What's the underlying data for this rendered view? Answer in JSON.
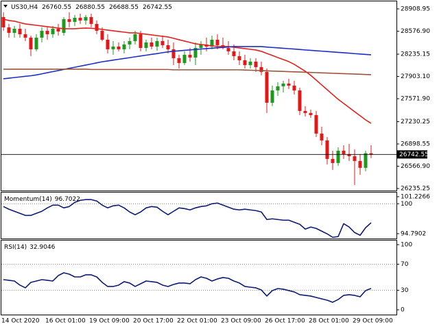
{
  "chart_data": {
    "type": "candlestick",
    "title": "US30,H4",
    "up_color": "#1c9a1c",
    "down_color": "#e01818",
    "categories": [
      "14 Oct 2020",
      null,
      null,
      null,
      null,
      null,
      null,
      null,
      "16 Oct 01:00",
      null,
      null,
      null,
      null,
      null,
      null,
      null,
      "19 Oct 09:00",
      null,
      null,
      null,
      null,
      null,
      null,
      null,
      "20 Oct 17:00",
      null,
      null,
      null,
      null,
      null,
      null,
      null,
      "22 Oct 01:00",
      null,
      null,
      null,
      null,
      null,
      null,
      null,
      "23 Oct 09:00",
      null,
      null,
      null,
      null,
      null,
      null,
      null,
      "26 Oct 17:00",
      null,
      null,
      null,
      null,
      null,
      null,
      null,
      "28 Oct 01:00",
      null,
      null,
      null,
      null,
      null,
      null,
      null,
      "29 Oct 09:00",
      null,
      null,
      null
    ],
    "open": [
      28787,
      28634,
      28552.4,
      28613.6,
      28532,
      28481,
      28307.6,
      28481,
      28583,
      28532,
      28613.6,
      28552.4,
      28756.4,
      28715.6,
      28776.8,
      28736,
      28787,
      28685,
      28583,
      28450.4,
      28307.6,
      28348.4,
      28307.6,
      28379,
      28430,
      28532,
      28328,
      28409.6,
      28348.4,
      28430,
      28368.8,
      28307.6,
      28175,
      28103.6,
      28226,
      28185.2,
      28328,
      28379,
      28348.4,
      28450.4,
      28368.8,
      28328,
      28277,
      28205.6,
      28144.4,
      28073,
      28124,
      28042.4,
      27971,
      27512,
      27695.6,
      27756.8,
      27797.6,
      27767,
      27695.6,
      27389.6,
      27359,
      27328.4,
      27053,
      26951,
      26675.6,
      26614.4,
      26798,
      26747,
      26716.4,
      26645,
      26543,
      26760.55
    ],
    "high": [
      28858.4,
      28685,
      28654.4,
      28685,
      28613.6,
      28511.6,
      28532,
      28634,
      28634,
      28654.4,
      28685,
      28787,
      28858.4,
      28817.6,
      28838,
      28817.6,
      28838,
      28736,
      28634,
      28532,
      28430,
      28409.6,
      28430,
      28481,
      28583,
      28583,
      28450.4,
      28481,
      28481,
      28511.6,
      28450.4,
      28409.6,
      28226,
      28277,
      28328,
      28409.6,
      28430,
      28481,
      28511.6,
      28532,
      28481,
      28430,
      28379,
      28277,
      28226,
      28175,
      28175,
      28124,
      28022,
      27767,
      27818,
      27838.4,
      27869,
      27838.4,
      27736.4,
      27461,
      27410,
      27389.6,
      27155,
      27002,
      26798,
      26849,
      26879.6,
      26900,
      26818.4,
      26747,
      26798,
      26880.55
    ],
    "low": [
      28583,
      28481,
      28481,
      28481,
      28430,
      28205.6,
      28277,
      28409.6,
      28450.4,
      28481,
      28511.6,
      28511.6,
      28634,
      28654.4,
      28685,
      28674.8,
      28634,
      28532,
      28430,
      28246.4,
      28226,
      28277,
      28246.4,
      28307.6,
      28379,
      28277,
      28277,
      28307.6,
      28287.2,
      28328,
      28246.4,
      28073,
      28022,
      28073,
      28124,
      28073,
      28226,
      28277,
      28307.6,
      28307.6,
      28307.6,
      28226,
      28144.4,
      28073,
      28022,
      28022,
      27971,
      27920,
      27359,
      27461,
      27614,
      27665,
      27716,
      27634.4,
      27328.4,
      27308,
      27287.6,
      27002,
      26879.6,
      26594,
      26512.4,
      26573.6,
      26675.6,
      26645,
      26288,
      26441,
      26492,
      26688.55
    ],
    "close": [
      28634,
      28552.4,
      28613.6,
      28532,
      28481,
      28307.6,
      28481,
      28583,
      28532,
      28613.6,
      28572.8,
      28756.4,
      28715.6,
      28776.8,
      28736,
      28787,
      28685,
      28583,
      28450.4,
      28307.6,
      28348.4,
      28307.6,
      28379,
      28430,
      28532,
      28328,
      28409.6,
      28348.4,
      28430,
      28368.8,
      28307.6,
      28175,
      28103.6,
      28226,
      28185.2,
      28328,
      28379,
      28348.4,
      28450.4,
      28368.8,
      28328,
      28277,
      28205.6,
      28144.4,
      28073,
      28124,
      28042.4,
      27971,
      27512,
      27695.6,
      27756.8,
      27797.6,
      27767,
      27695.6,
      27389.6,
      27359,
      27328.4,
      27053,
      26951,
      26675.6,
      26614.4,
      26798,
      26747,
      26716.4,
      26645,
      26543,
      26760.55,
      26742.55
    ],
    "series": [
      {
        "color": "#e5201c",
        "values": [
          28756,
          28736,
          28726,
          28705,
          28685,
          28675,
          28665,
          28654,
          28644,
          28634,
          28624,
          28614,
          28614,
          28614,
          28620,
          28624,
          28620,
          28614,
          28604,
          28593,
          28583,
          28573,
          28563,
          28552,
          28552,
          28542,
          28532,
          28522,
          28511,
          28501,
          28491,
          28471,
          28450,
          28430,
          28410,
          28389,
          28379,
          28369,
          28359,
          28348,
          28348,
          28348,
          28338,
          28328,
          28318,
          28308,
          28297,
          28277,
          28246,
          28216,
          28185,
          28155,
          28124,
          28083,
          28032,
          27981,
          27920,
          27849,
          27777,
          27706,
          27634,
          27563,
          27502,
          27441,
          27379,
          27318,
          27257,
          27206
        ]
      },
      {
        "color": "#1c2fc4",
        "values": [
          27869,
          27878,
          27887,
          27896,
          27906,
          27914,
          27926,
          27942,
          27959,
          27975,
          27991,
          28008,
          28024,
          28040,
          28057,
          28073,
          28089,
          28106,
          28122,
          28134,
          28147,
          28159,
          28171,
          28183,
          28196,
          28208,
          28220,
          28232,
          28244,
          28257,
          28269,
          28279,
          28285,
          28292,
          28298,
          28305,
          28312,
          28318,
          28324,
          28330,
          28336,
          28343,
          28348,
          28348,
          28348,
          28348,
          28348,
          28348,
          28341,
          28335,
          28329,
          28323,
          28317,
          28311,
          28305,
          28298,
          28292,
          28286,
          28280,
          28274,
          28268,
          28262,
          28256,
          28250,
          28243,
          28237,
          28231,
          28226
        ]
      },
      {
        "color": "#9a5636",
        "values": [
          28012,
          28012,
          28012,
          28012,
          28012,
          28012,
          28012,
          28012,
          28012,
          28012,
          28012,
          28012,
          28012,
          28012,
          28012,
          28012,
          28007,
          28007,
          28007,
          28007,
          28007,
          28007,
          28007,
          28007,
          28007,
          28007,
          28007,
          28007,
          28007,
          28007,
          28007,
          28002,
          28002,
          28002,
          28002,
          28002,
          28002,
          28002,
          28002,
          28002,
          28002,
          28002,
          28002,
          28002,
          27999,
          27996,
          27993,
          27990,
          27987,
          27984,
          27981,
          27978,
          27975,
          27972,
          27969,
          27966,
          27963,
          27960,
          27957,
          27954,
          27951,
          27948,
          27945,
          27942,
          27939,
          27936,
          27933,
          27930
        ]
      }
    ],
    "ylim": [
      26205,
      29021
    ],
    "yticks": [
      28908.95,
      {
        "value": 28576.9,
        "label": "28576.90"
      },
      28235.15,
      {
        "value": 27903.1,
        "label": "27903.10"
      },
      {
        "value": 27571.9,
        "label": "27571.90"
      },
      27230.25,
      26898.55,
      {
        "value": 26566.9,
        "label": "26566.90"
      },
      26235.25
    ],
    "panels": [
      {
        "type": "line",
        "title": "Momentum(14)",
        "series": [
          {
            "color": "#0c1a78",
            "values": [
              99.52,
              99.05,
              98.69,
              98.33,
              97.97,
              97.97,
              98.33,
              98.69,
              99.28,
              99.76,
              99.76,
              99.28,
              99.52,
              100.24,
              100.6,
              100.72,
              100.72,
              100.48,
              99.76,
              99.28,
              99.64,
              99.76,
              99.28,
              98.57,
              98.09,
              98.57,
              99.28,
              99.52,
              99.4,
              98.69,
              98.09,
              98.69,
              99.28,
              99.16,
              98.93,
              99.28,
              99.52,
              99.64,
              100,
              100.12,
              99.76,
              99.4,
              99.05,
              98.93,
              99.05,
              98.93,
              98.81,
              98.57,
              97.26,
              97.38,
              97.26,
              97.14,
              97.14,
              96.78,
              96.42,
              95.59,
              95.95,
              95.71,
              95.23,
              94.76,
              94.16,
              94.28,
              96.54,
              95.95,
              94.99,
              94.52,
              95.83,
              96.7022
            ]
          }
        ],
        "ylim": [
          93.95,
          101.94
        ],
        "yticks": [
          101.2266,
          100,
          94.7902
        ],
        "levels": [
          100
        ]
      },
      {
        "type": "line",
        "title": "RSI(14)",
        "series": [
          {
            "color": "#0c1a78",
            "values": [
              46.3,
              45.3,
              44.2,
              37.9,
              33.7,
              42.1,
              44.2,
              46.3,
              45.3,
              44.2,
              52.6,
              56.8,
              54.7,
              50.5,
              50.5,
              53.7,
              53.7,
              50.5,
              42.1,
              35.8,
              35.8,
              37.9,
              43.2,
              41.1,
              35.8,
              40,
              44.2,
              43.2,
              42.1,
              37.9,
              35.8,
              38.9,
              41.1,
              41.1,
              40,
              46.3,
              50.5,
              48.4,
              44.2,
              47.4,
              49.5,
              48.4,
              44.2,
              41.1,
              35.8,
              34.7,
              33.7,
              30.5,
              21.1,
              29.5,
              32.6,
              31.6,
              29.5,
              27.4,
              23.2,
              22.1,
              21.1,
              18.9,
              16.8,
              14.7,
              11.6,
              15.8,
              22.1,
              23.2,
              22.1,
              20,
              29.5,
              32.9046
            ]
          }
        ],
        "ylim": [
          -7.4,
          106.3
        ],
        "yticks": [
          100,
          70,
          30,
          0
        ],
        "levels": [
          70,
          30
        ]
      }
    ]
  }
}
